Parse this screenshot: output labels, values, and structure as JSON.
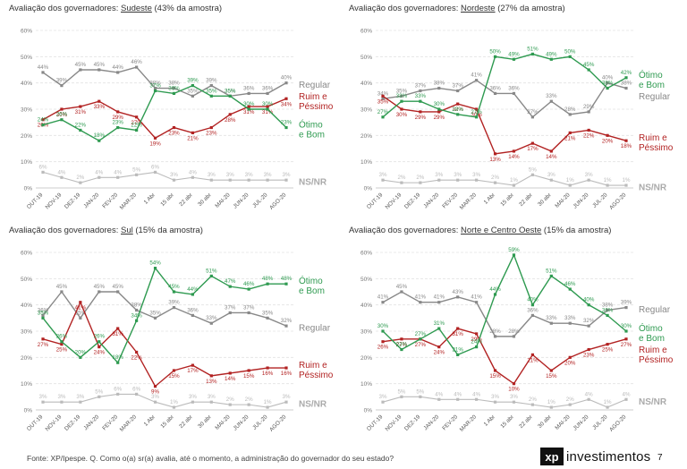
{
  "colors": {
    "regular": "#888888",
    "ruim": "#b22222",
    "otimo": "#2e9a50",
    "nsnr": "#bbbbbb",
    "grid": "#e2e2e2",
    "axis": "#666666"
  },
  "footer": {
    "source": "Fonte: XP/Ipespe. Q. Como o(a) sr(a) avalia, até o momento, a administração do governador do seu estado?",
    "logo_mark": "xp",
    "logo_text": "investimentos",
    "page": "7"
  },
  "chart_data": [
    {
      "type": "line",
      "title_prefix": "Avaliação dos governadores: ",
      "title_region": "Sudeste",
      "title_suffix": " (43% da amostra)",
      "categories": [
        "OUT-19",
        "NOV-19",
        "DEZ-19",
        "JAN-20",
        "FEV-20",
        "MAR-20",
        "1 Abr",
        "15 abr",
        "22 abr",
        "30 abr",
        "MAI-20",
        "JUN-20",
        "JUL-20",
        "AGO-20"
      ],
      "yticks": [
        "0%",
        "10%",
        "20%",
        "30%",
        "40%",
        "50%",
        "60%"
      ],
      "ylim": [
        0,
        60
      ],
      "series": [
        {
          "key": "regular",
          "name": "Regular",
          "values": [
            44,
            39,
            45,
            45,
            44,
            46,
            38,
            38,
            35,
            39,
            35,
            36,
            36,
            40
          ],
          "labels": [
            "44%",
            "39%",
            "45%",
            "45%",
            "44%",
            "46%",
            "38%",
            "38%",
            "35%",
            "39%",
            "35%",
            "36%",
            "36%",
            "40%"
          ]
        },
        {
          "key": "ruim",
          "name": "Ruim e Péssimo",
          "values": [
            26,
            30,
            31,
            33,
            29,
            27,
            19,
            23,
            21,
            23,
            28,
            31,
            31,
            34
          ],
          "labels": [
            "26%",
            "30%",
            "31%",
            "33%",
            "29%",
            "27%",
            "19%",
            "23%",
            "21%",
            "23%",
            "28%",
            "31%",
            "31%",
            "34%"
          ]
        },
        {
          "key": "otimo",
          "name": "Ótimo e Bom",
          "values": [
            24,
            26,
            22,
            18,
            23,
            22,
            37,
            36,
            39,
            35,
            35,
            30,
            30,
            23
          ],
          "labels": [
            "24%",
            "26%",
            "22%",
            "18%",
            "23%",
            "22%",
            "37%",
            "36%",
            "39%",
            "35%",
            "35%",
            "30%",
            "30%",
            "23%"
          ]
        },
        {
          "key": "nsnr",
          "name": "NS/NR",
          "values": [
            6,
            4,
            2,
            4,
            4,
            5,
            6,
            3,
            4,
            3,
            3,
            3,
            3,
            3
          ],
          "labels": [
            "6%",
            "4%",
            "2%",
            "4%",
            "4%",
            "5%",
            "6%",
            "3%",
            "4%",
            "3%",
            "3%",
            "3%",
            "3%",
            "3%"
          ]
        }
      ]
    },
    {
      "type": "line",
      "title_prefix": "Avaliação dos governadores: ",
      "title_region": "Nordeste",
      "title_suffix": " (27% da amostra)",
      "categories": [
        "OUT-19",
        "NOV-19",
        "DEZ-19",
        "JAN-20",
        "FEV-20",
        "MAR-20",
        "1 Abr",
        "15 abr",
        "22 abr",
        "30 abr",
        "MAI-20",
        "JUN-20",
        "JUL-20",
        "AGO-20"
      ],
      "yticks": [
        "0%",
        "10%",
        "20%",
        "30%",
        "40%",
        "50%",
        "60%"
      ],
      "ylim": [
        0,
        60
      ],
      "series": [
        {
          "key": "regular",
          "name": "Regular",
          "values": [
            34,
            35,
            37,
            38,
            37,
            41,
            36,
            36,
            27,
            33,
            28,
            29,
            40,
            38
          ],
          "labels": [
            "34%",
            "35%",
            "37%",
            "38%",
            "37%",
            "41%",
            "36%",
            "36%",
            "27%",
            "33%",
            "28%",
            "29%",
            "40%",
            "38%"
          ]
        },
        {
          "key": "ruim",
          "name": "Ruim e Péssimo",
          "values": [
            35,
            30,
            29,
            29,
            32,
            30,
            13,
            14,
            17,
            14,
            21,
            22,
            20,
            18
          ],
          "labels": [
            "35%",
            "30%",
            "29%",
            "29%",
            "32%",
            "30%",
            "13%",
            "14%",
            "17%",
            "14%",
            "21%",
            "22%",
            "20%",
            "18%"
          ]
        },
        {
          "key": "otimo",
          "name": "Ótimo e Bom",
          "values": [
            27,
            33,
            33,
            30,
            28,
            27,
            50,
            49,
            51,
            49,
            50,
            45,
            38,
            42
          ],
          "labels": [
            "27%",
            "33%",
            "33%",
            "30%",
            "28%",
            "27%",
            "50%",
            "49%",
            "51%",
            "49%",
            "50%",
            "45%",
            "38%",
            "42%"
          ]
        },
        {
          "key": "nsnr",
          "name": "NS/NR",
          "values": [
            3,
            2,
            2,
            3,
            3,
            3,
            2,
            1,
            5,
            3,
            1,
            3,
            1,
            1
          ],
          "labels": [
            "3%",
            "2%",
            "2%",
            "3%",
            "3%",
            "3%",
            "2%",
            "1%",
            "5%",
            "3%",
            "1%",
            "3%",
            "1%",
            "1%"
          ]
        }
      ]
    },
    {
      "type": "line",
      "title_prefix": "Avaliação dos governadores: ",
      "title_region": "Sul",
      "title_suffix": " (15% da amostra)",
      "categories": [
        "OUT-19",
        "NOV-19",
        "DEZ-19",
        "JAN-20",
        "FEV-20",
        "MAR-20",
        "1 Abr",
        "15 abr",
        "22 abr",
        "30 abr",
        "MAI-20",
        "JUN-20",
        "JUL-20",
        "AGO-20"
      ],
      "yticks": [
        "0%",
        "10%",
        "20%",
        "30%",
        "40%",
        "50%",
        "60%"
      ],
      "ylim": [
        0,
        60
      ],
      "series": [
        {
          "key": "regular",
          "name": "Regular",
          "values": [
            36,
            45,
            35,
            45,
            45,
            38,
            35,
            39,
            36,
            33,
            37,
            37,
            35,
            32
          ],
          "labels": [
            "36%",
            "45%",
            "35%",
            "45%",
            "45%",
            "38%",
            "35%",
            "39%",
            "36%",
            "33%",
            "37%",
            "37%",
            "35%",
            "32%"
          ]
        },
        {
          "key": "ruim",
          "name": "Ruim e Péssimo",
          "values": [
            27,
            25,
            41,
            24,
            31,
            22,
            9,
            15,
            17,
            13,
            14,
            15,
            16,
            16
          ],
          "labels": [
            "27%",
            "25%",
            "41%",
            "24%",
            "31%",
            "22%",
            "9%",
            "15%",
            "17%",
            "13%",
            "14%",
            "15%",
            "16%",
            "16%"
          ]
        },
        {
          "key": "otimo",
          "name": "Ótimo e Bom",
          "values": [
            35,
            26,
            20,
            26,
            18,
            34,
            54,
            45,
            44,
            51,
            47,
            46,
            48,
            48
          ],
          "labels": [
            "35%",
            "26%",
            "20%",
            "26%",
            "18%",
            "34%",
            "54%",
            "45%",
            "44%",
            "51%",
            "47%",
            "46%",
            "48%",
            "48%"
          ]
        },
        {
          "key": "nsnr",
          "name": "NS/NR",
          "values": [
            3,
            3,
            3,
            5,
            6,
            6,
            3,
            1,
            3,
            3,
            2,
            2,
            1,
            3
          ],
          "labels": [
            "3%",
            "3%",
            "3%",
            "5%",
            "6%",
            "6%",
            "3%",
            "1%",
            "3%",
            "3%",
            "2%",
            "2%",
            "1%",
            "3%"
          ]
        }
      ]
    },
    {
      "type": "line",
      "title_prefix": "Avaliação dos governadores: ",
      "title_region": "Norte e Centro Oeste",
      "title_suffix": " (15% da amostra)",
      "categories": [
        "OUT-19",
        "NOV-19",
        "DEZ-19",
        "JAN-20",
        "FEV-20",
        "MAR-20",
        "1 Abr",
        "15 abr",
        "22 abr",
        "30 abr",
        "MAI-20",
        "JUN-20",
        "JUL-20",
        "AGO-20"
      ],
      "yticks": [
        "0%",
        "10%",
        "20%",
        "30%",
        "40%",
        "50%",
        "60%"
      ],
      "ylim": [
        0,
        60
      ],
      "series": [
        {
          "key": "regular",
          "name": "Regular",
          "values": [
            41,
            45,
            41,
            41,
            43,
            41,
            28,
            28,
            36,
            33,
            33,
            32,
            38,
            39
          ],
          "labels": [
            "41%",
            "45%",
            "41%",
            "41%",
            "43%",
            "41%",
            "28%",
            "28%",
            "36%",
            "33%",
            "33%",
            "32%",
            "38%",
            "39%"
          ]
        },
        {
          "key": "ruim",
          "name": "Ruim e Péssimo",
          "values": [
            26,
            27,
            27,
            24,
            31,
            29,
            15,
            10,
            21,
            15,
            20,
            23,
            25,
            27
          ],
          "labels": [
            "26%",
            "27%",
            "27%",
            "24%",
            "31%",
            "29%",
            "15%",
            "10%",
            "21%",
            "15%",
            "20%",
            "23%",
            "25%",
            "27%"
          ]
        },
        {
          "key": "otimo",
          "name": "Ótimo e Bom",
          "values": [
            30,
            23,
            27,
            31,
            21,
            24,
            44,
            59,
            40,
            51,
            46,
            40,
            36,
            30
          ],
          "labels": [
            "30%",
            "23%",
            "27%",
            "31%",
            "21%",
            "24%",
            "44%",
            "59%",
            "40%",
            "51%",
            "46%",
            "40%",
            "36%",
            "30%"
          ]
        },
        {
          "key": "nsnr",
          "name": "NS/NR",
          "values": [
            3,
            5,
            5,
            4,
            4,
            4,
            3,
            3,
            2,
            1,
            2,
            4,
            1,
            4
          ],
          "labels": [
            "3%",
            "5%",
            "5%",
            "4%",
            "4%",
            "4%",
            "3%",
            "3%",
            "2%",
            "1%",
            "2%",
            "4%",
            "1%",
            "4%"
          ]
        }
      ]
    }
  ]
}
